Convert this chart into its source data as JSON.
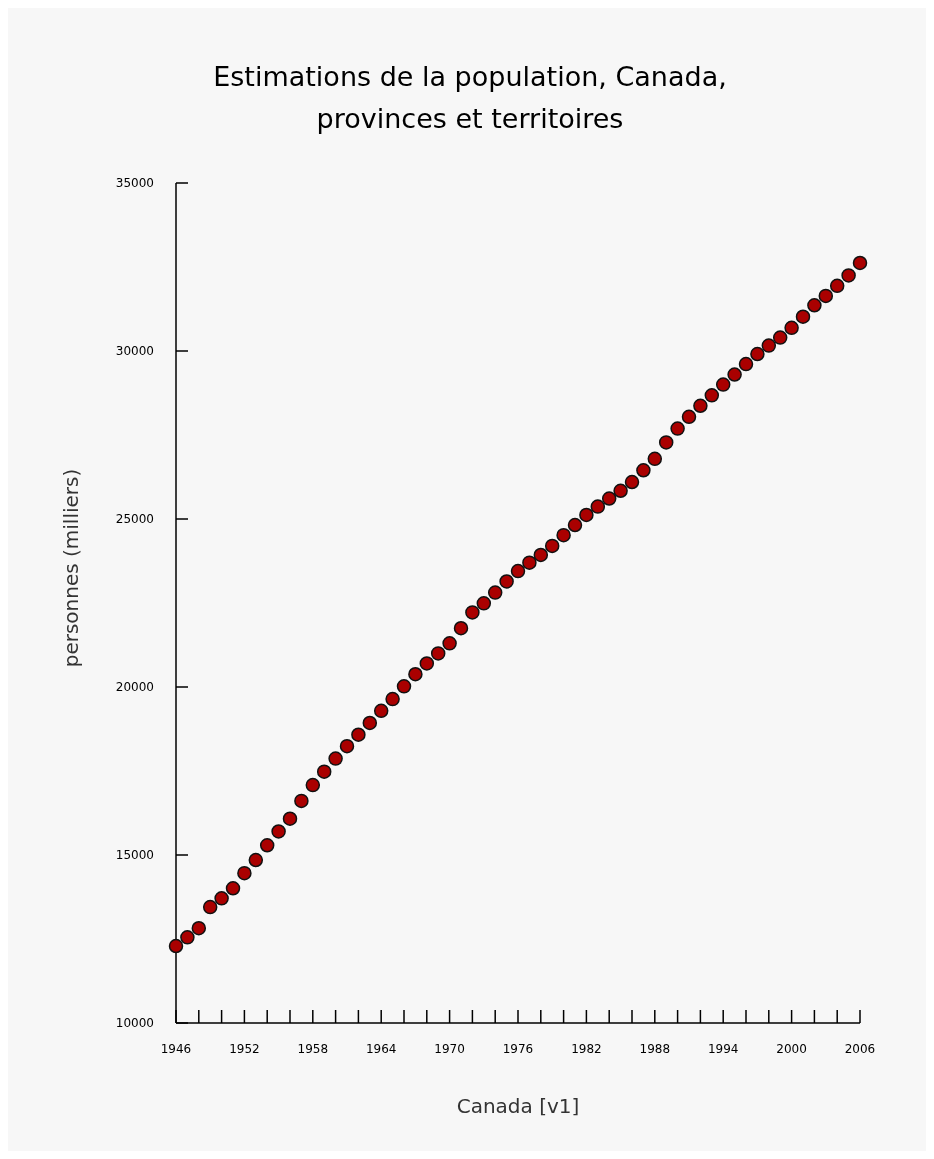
{
  "chart_data": {
    "type": "scatter",
    "title": "Estimations de la population, Canada,\nprovinces et territoires",
    "xlabel": "Canada [v1]",
    "ylabel": "personnes (milliers)",
    "x": [
      1946,
      1947,
      1948,
      1949,
      1950,
      1951,
      1952,
      1953,
      1954,
      1955,
      1956,
      1957,
      1958,
      1959,
      1960,
      1961,
      1962,
      1963,
      1964,
      1965,
      1966,
      1967,
      1968,
      1969,
      1970,
      1971,
      1972,
      1973,
      1974,
      1975,
      1976,
      1977,
      1978,
      1979,
      1980,
      1981,
      1982,
      1983,
      1984,
      1985,
      1986,
      1987,
      1988,
      1989,
      1990,
      1991,
      1992,
      1993,
      1994,
      1995,
      1996,
      1997,
      1998,
      1999,
      2000,
      2001,
      2002,
      2003,
      2004,
      2005,
      2006
    ],
    "series": [
      {
        "color": "#aa0000",
        "values": [
          12290,
          12550,
          12820,
          13450,
          13710,
          14010,
          14460,
          14850,
          15290,
          15700,
          16080,
          16610,
          17080,
          17480,
          17870,
          18240,
          18580,
          18930,
          19290,
          19640,
          20020,
          20380,
          20700,
          21000,
          21300,
          21750,
          22220,
          22490,
          22810,
          23140,
          23450,
          23700,
          23930,
          24200,
          24520,
          24820,
          25120,
          25370,
          25610,
          25840,
          26100,
          26450,
          26790,
          27280,
          27690,
          28040,
          28370,
          28680,
          29000,
          29300,
          29610,
          29910,
          30160,
          30400,
          30690,
          31020,
          31360,
          31640,
          31940,
          32250,
          32620
        ]
      }
    ],
    "xlim": [
      1946,
      2006
    ],
    "xticks": [
      1946,
      {
        "value": 1948,
        "label": null
      },
      {
        "value": 1950,
        "label": null
      },
      1952,
      {
        "value": 1954,
        "label": null
      },
      {
        "value": 1956,
        "label": null
      },
      1958,
      {
        "value": 1960,
        "label": null
      },
      {
        "value": 1962,
        "label": null
      },
      1964,
      {
        "value": 1966,
        "label": null
      },
      {
        "value": 1968,
        "label": null
      },
      1970,
      {
        "value": 1972,
        "label": null
      },
      {
        "value": 1974,
        "label": null
      },
      1976,
      {
        "value": 1978,
        "label": null
      },
      {
        "value": 1980,
        "label": null
      },
      1982,
      {
        "value": 1984,
        "label": null
      },
      {
        "value": 1986,
        "label": null
      },
      1988,
      {
        "value": 1990,
        "label": null
      },
      {
        "value": 1992,
        "label": null
      },
      1994,
      {
        "value": 1996,
        "label": null
      },
      {
        "value": 1998,
        "label": null
      },
      2000,
      {
        "value": 2002,
        "label": null
      },
      {
        "value": 2004,
        "label": null
      },
      2006
    ],
    "ylim": [
      10000,
      35000
    ],
    "yticks": [
      10000,
      15000,
      20000,
      25000,
      30000,
      35000
    ],
    "marker": "circle"
  }
}
